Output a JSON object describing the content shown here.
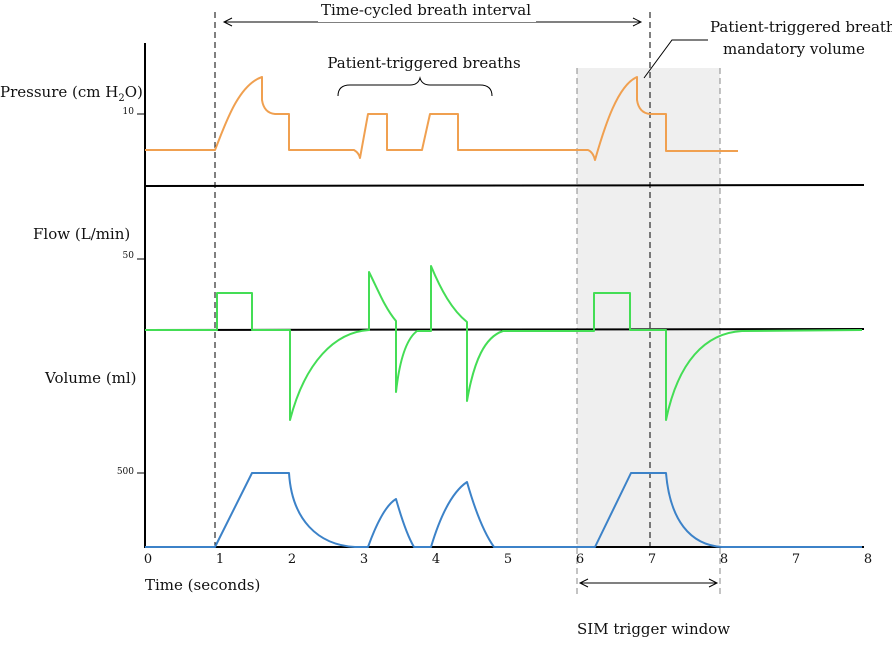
{
  "title_interval": "Time-cycled breath interval",
  "annotation_patient_breaths": "Patient-triggered breaths",
  "annotation_mandatory_line1": "Patient-triggered breath;",
  "annotation_mandatory_line2": "mandatory volume",
  "pressure_label_main": "Pressure (cm H",
  "pressure_label_sub": "2",
  "pressure_label_end": "O)",
  "pressure_tick": "10",
  "flow_label": "Flow (L/min)",
  "flow_tick": "50",
  "volume_label": "Volume (ml)",
  "volume_tick": "500",
  "x_axis_label": "Time (seconds)",
  "x_ticks": [
    "0",
    "1",
    "2",
    "3",
    "4",
    "5",
    "6",
    "7",
    "8",
    "6",
    "7",
    "8"
  ],
  "sim_label": "SIM trigger window",
  "colors": {
    "pressure": "#F0A050",
    "flow": "#44DD55",
    "volume": "#3C82C8",
    "shade": "#EFEFEF",
    "axis": "#000000"
  }
}
